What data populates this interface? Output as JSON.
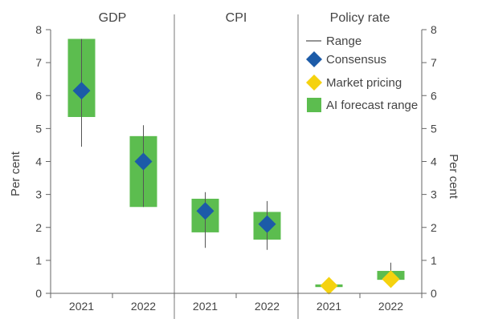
{
  "chart_data": {
    "type": "range",
    "ylim": [
      0,
      8
    ],
    "yticks": [
      0,
      1,
      2,
      3,
      4,
      5,
      6,
      7,
      8
    ],
    "ylabel_left": "Per cent",
    "ylabel_right": "Per cent",
    "grid": false,
    "legend_placement": "top-right",
    "colors": {
      "range": "#555555",
      "consensus": "#1c5ba8",
      "market_pricing": "#f5d20f",
      "ai_forecast": "#5cbd4f"
    },
    "legend": [
      {
        "key": "range",
        "label": "Range"
      },
      {
        "key": "consensus",
        "label": "Consensus"
      },
      {
        "key": "market_pricing",
        "label": "Market pricing"
      },
      {
        "key": "ai_forecast",
        "label": "AI forecast range"
      }
    ],
    "panels": [
      {
        "title": "GDP",
        "categories": [
          "2021",
          "2022"
        ],
        "ai_forecast": [
          [
            5.35,
            7.72
          ],
          [
            2.62,
            4.77
          ]
        ],
        "range": [
          [
            4.45,
            7.72
          ],
          [
            2.62,
            5.1
          ]
        ],
        "consensus": [
          6.15,
          4.0
        ],
        "market_pricing": [
          null,
          null
        ]
      },
      {
        "title": "CPI",
        "categories": [
          "2021",
          "2022"
        ],
        "ai_forecast": [
          [
            1.85,
            2.87
          ],
          [
            1.63,
            2.47
          ]
        ],
        "range": [
          [
            1.38,
            3.07
          ],
          [
            1.32,
            2.8
          ]
        ],
        "consensus": [
          2.5,
          2.1
        ],
        "market_pricing": [
          null,
          null
        ]
      },
      {
        "title": "Policy rate",
        "categories": [
          "2021",
          "2022"
        ],
        "ai_forecast": [
          [
            0.19,
            0.27
          ],
          [
            0.41,
            0.68
          ]
        ],
        "range": [
          [
            0.19,
            0.27
          ],
          [
            0.2,
            0.93
          ]
        ],
        "consensus": [
          null,
          null
        ],
        "market_pricing": [
          0.23,
          0.43
        ]
      }
    ]
  }
}
